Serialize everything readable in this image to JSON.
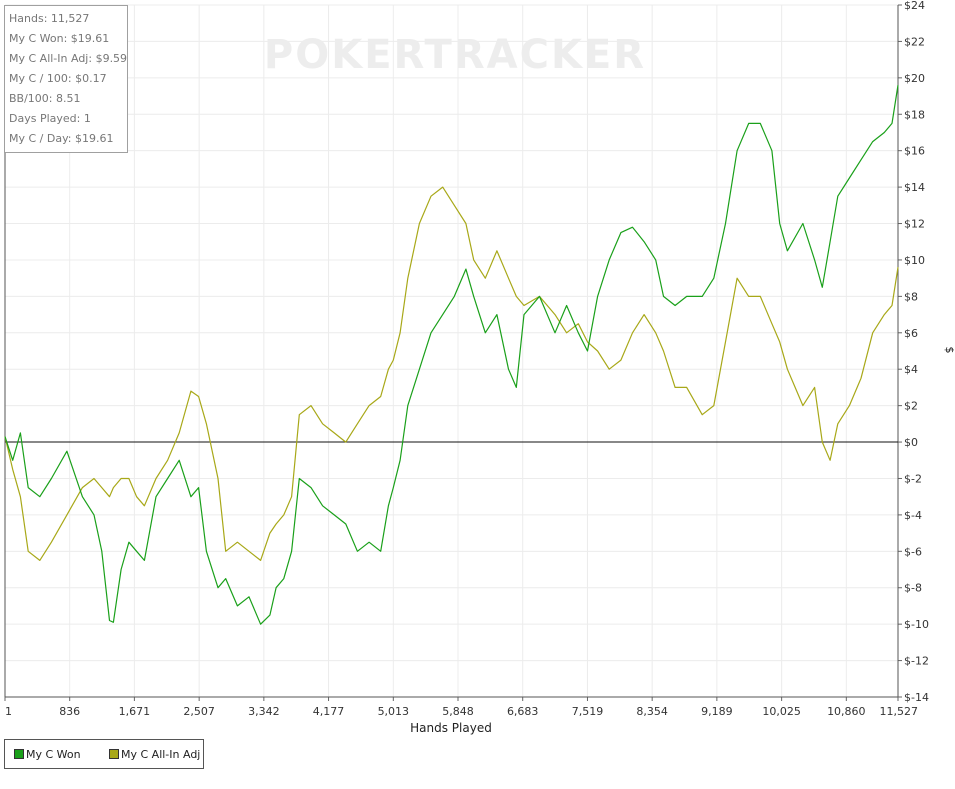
{
  "watermark": "POKERTRACKER",
  "stats": [
    "Hands: 11,527",
    "My C Won: $19.61",
    "My C All-In Adj: $9.59",
    "My C / 100: $0.17",
    "BB/100: 8.51",
    "Days Played: 1",
    "My C / Day: $19.61"
  ],
  "chart_data": {
    "type": "line",
    "title": "",
    "xlabel": "Hands Played",
    "ylabel": "$",
    "xlim": [
      1,
      11527
    ],
    "ylim": [
      -14,
      24
    ],
    "x_ticks": [
      "1",
      "836",
      "1,671",
      "2,507",
      "3,342",
      "4,177",
      "5,013",
      "5,848",
      "6,683",
      "7,519",
      "8,354",
      "9,189",
      "10,025",
      "10,860",
      "11,527"
    ],
    "x_tick_values": [
      1,
      836,
      1671,
      2507,
      3342,
      4177,
      5013,
      5848,
      6683,
      7519,
      8354,
      9189,
      10025,
      10860,
      11527
    ],
    "y_ticks": [
      "$24",
      "$22",
      "$20",
      "$18",
      "$16",
      "$14",
      "$12",
      "$10",
      "$8",
      "$6",
      "$4",
      "$2",
      "$0",
      "$-2",
      "$-4",
      "$-6",
      "$-8",
      "$-10",
      "$-12",
      "$-14"
    ],
    "y_tick_values": [
      24,
      22,
      20,
      18,
      16,
      14,
      12,
      10,
      8,
      6,
      4,
      2,
      0,
      -2,
      -4,
      -6,
      -8,
      -10,
      -12,
      -14
    ],
    "grid": true,
    "legend_position": "bottom-left",
    "x": [
      1,
      100,
      200,
      300,
      450,
      600,
      800,
      1000,
      1150,
      1250,
      1350,
      1400,
      1500,
      1600,
      1700,
      1800,
      1950,
      2100,
      2250,
      2400,
      2500,
      2600,
      2750,
      2850,
      3000,
      3150,
      3300,
      3420,
      3500,
      3600,
      3700,
      3800,
      3950,
      4100,
      4250,
      4400,
      4550,
      4700,
      4850,
      4950,
      5013,
      5100,
      5200,
      5350,
      5500,
      5650,
      5800,
      5950,
      6050,
      6200,
      6350,
      6500,
      6600,
      6700,
      6900,
      7100,
      7250,
      7400,
      7519,
      7650,
      7800,
      7950,
      8100,
      8250,
      8400,
      8500,
      8650,
      8800,
      9000,
      9150,
      9300,
      9450,
      9600,
      9750,
      9900,
      10000,
      10100,
      10300,
      10450,
      10550,
      10650,
      10750,
      10900,
      11050,
      11200,
      11350,
      11450,
      11527
    ],
    "series": [
      {
        "name": "My C Won",
        "color": "#1aa01a",
        "values": [
          0.3,
          -1,
          0.5,
          -2.5,
          -3,
          -2,
          -0.5,
          -3,
          -4,
          -6,
          -9.8,
          -9.9,
          -7,
          -5.5,
          -6,
          -6.5,
          -3,
          -2,
          -1,
          -3,
          -2.5,
          -6,
          -8,
          -7.5,
          -9,
          -8.5,
          -10,
          -9.5,
          -8,
          -7.5,
          -6,
          -2,
          -2.5,
          -3.5,
          -4,
          -4.5,
          -6,
          -5.5,
          -6,
          -3.5,
          -2.5,
          -1,
          2,
          4,
          6,
          7,
          8,
          9.5,
          8,
          6,
          7,
          4,
          3,
          7,
          8,
          6,
          7.5,
          6,
          5,
          8,
          10,
          11.5,
          11.8,
          11,
          10,
          8,
          7.5,
          8,
          8,
          9,
          12,
          16,
          17.5,
          17.5,
          16,
          12,
          10.5,
          12,
          10,
          8.5,
          11,
          13.5,
          14.5,
          15.5,
          16.5,
          17,
          17.5,
          19.6
        ]
      },
      {
        "name": "My C All-In Adj",
        "color": "#a8a818",
        "values": [
          0.3,
          -1.5,
          -3,
          -6,
          -6.5,
          -5.5,
          -4,
          -2.5,
          -2,
          -2.5,
          -3,
          -2.5,
          -2,
          -2,
          -3,
          -3.5,
          -2,
          -1,
          0.5,
          2.8,
          2.5,
          1,
          -2,
          -6,
          -5.5,
          -6,
          -6.5,
          -5,
          -4.5,
          -4,
          -3,
          1.5,
          2,
          1,
          0.5,
          0,
          1,
          2,
          2.5,
          4,
          4.5,
          6,
          9,
          12,
          13.5,
          14,
          13,
          12,
          10,
          9,
          10.5,
          9,
          8,
          7.5,
          8,
          7,
          6,
          6.5,
          5.5,
          5,
          4,
          4.5,
          6,
          7,
          6,
          5,
          3,
          3,
          1.5,
          2,
          5.5,
          9,
          8,
          8,
          6.5,
          5.5,
          4,
          2,
          3,
          0,
          -1,
          1,
          2,
          3.5,
          6,
          7,
          7.5,
          9.6
        ]
      }
    ]
  }
}
